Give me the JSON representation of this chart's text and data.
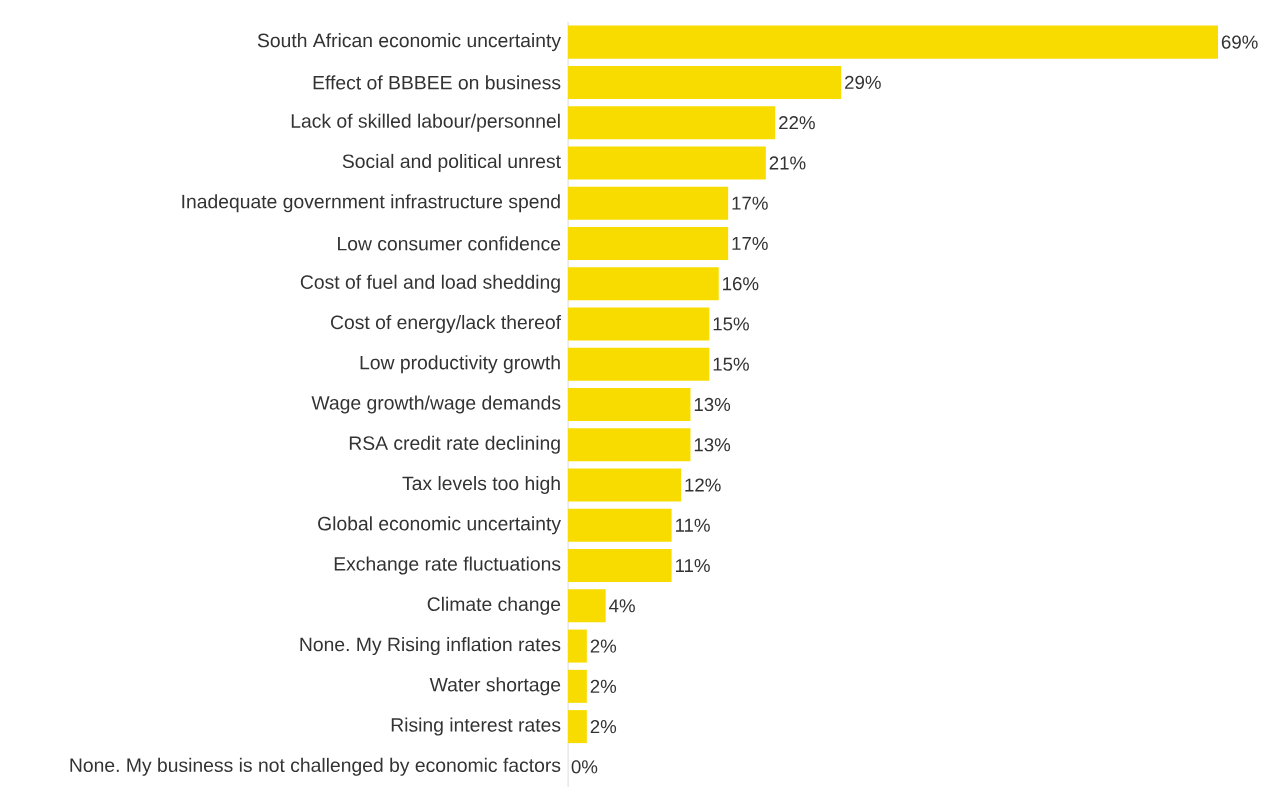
{
  "chart_data": {
    "type": "bar",
    "orientation": "horizontal",
    "categories": [
      "South African economic uncertainty",
      "Effect of BBBEE on business",
      "Lack of skilled labour/personnel",
      "Social and political unrest",
      "Inadequate government infrastructure spend",
      "Low consumer confidence",
      "Cost of fuel and load shedding",
      "Cost of energy/lack thereof",
      "Low productivity growth",
      "Wage growth/wage demands",
      "RSA credit rate declining",
      "Tax levels too high",
      "Global economic uncertainty",
      "Exchange rate fluctuations",
      "Climate change",
      "None. My Rising inflation rates",
      "Water shortage",
      "Rising interest rates",
      "None. My business is not challenged by economic factors"
    ],
    "values": [
      69,
      29,
      22,
      21,
      17,
      17,
      16,
      15,
      15,
      13,
      13,
      12,
      11,
      11,
      4,
      2,
      2,
      2,
      0
    ],
    "value_labels": [
      "69%",
      "29%",
      "22%",
      "21%",
      "17%",
      "17%",
      "16%",
      "15%",
      "15%",
      "13%",
      "13%",
      "12%",
      "11%",
      "11%",
      "4%",
      "2%",
      "2%",
      "2%",
      "0%"
    ],
    "color": "#f8dc00"
  }
}
